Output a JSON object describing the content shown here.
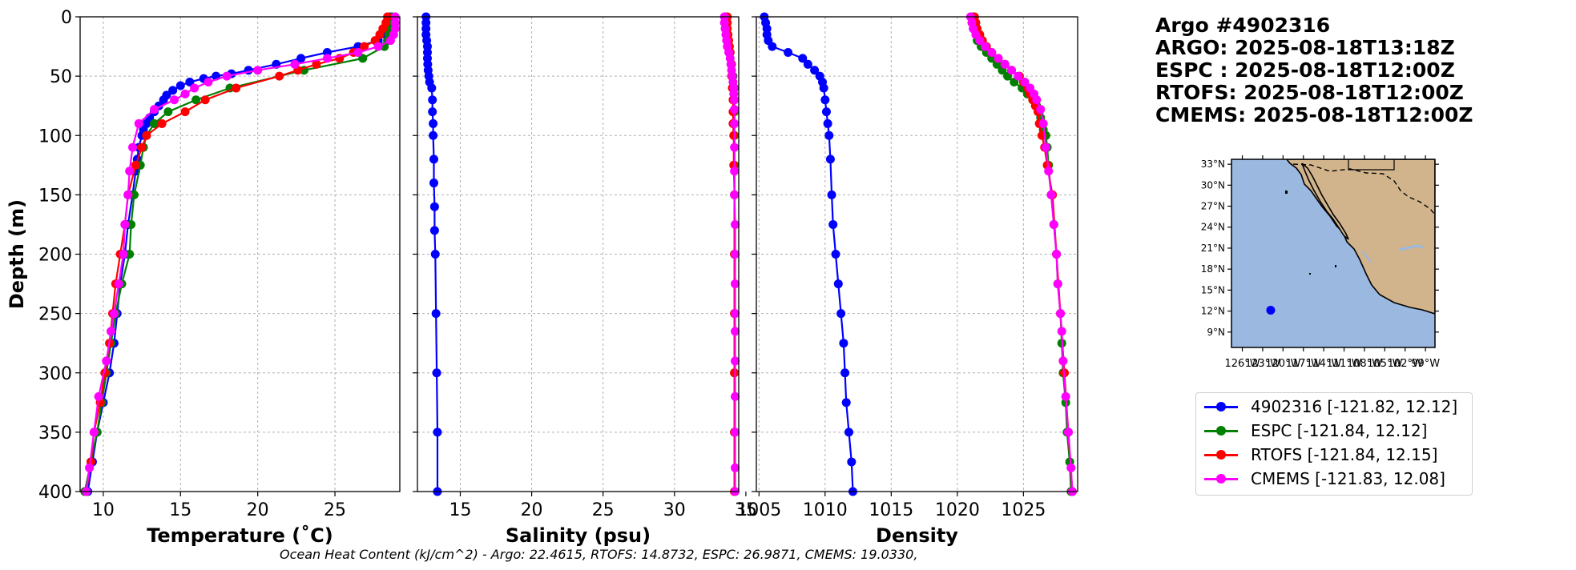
{
  "info": {
    "title": "Argo #4902316",
    "argo_time": "ARGO: 2025-08-18T13:18Z",
    "espc_time": "ESPC : 2025-08-18T12:00Z",
    "rtofs_time": "RTOFS: 2025-08-18T12:00Z",
    "cmems_time": "CMEMS: 2025-08-18T12:00Z"
  },
  "legend": [
    {
      "label": "4902316 [-121.82, 12.12]",
      "color": "#0000ff"
    },
    {
      "label": "ESPC [-121.84, 12.12]",
      "color": "#008000"
    },
    {
      "label": "RTOFS [-121.84, 12.15]",
      "color": "#ff0000"
    },
    {
      "label": "CMEMS [-121.83, 12.08]",
      "color": "#ff00ff"
    }
  ],
  "footer": "Ocean Heat Content (kJ/cm^2) - Argo: 22.4615,  RTOFS: 14.8732,  ESPC: 26.9871,  CMEMS: 19.0330,",
  "chart_data": [
    {
      "type": "line",
      "name": "temperature",
      "xlabel": "Temperature (˚C)",
      "ylabel": "Depth (m)",
      "xlim": [
        8.5,
        29.2
      ],
      "ylim": [
        400,
        0
      ],
      "xticks": [
        10,
        15,
        20,
        25
      ],
      "yticks": [
        0,
        50,
        100,
        150,
        200,
        250,
        300,
        350,
        400
      ],
      "grid": true,
      "series": [
        {
          "name": "4902316",
          "color": "#0000ff",
          "depth": [
            0,
            5,
            10,
            15,
            20,
            25,
            30,
            35,
            40,
            45,
            48,
            50,
            52,
            55,
            58,
            62,
            66,
            70,
            75,
            80,
            85,
            90,
            95,
            100,
            110,
            120,
            130,
            150,
            175,
            200,
            225,
            250,
            275,
            300,
            325,
            350,
            375,
            400
          ],
          "values": [
            28.6,
            28.6,
            28.5,
            28.3,
            27.8,
            26.5,
            24.5,
            22.8,
            21.2,
            19.4,
            18.3,
            17.3,
            16.5,
            15.6,
            15.0,
            14.5,
            14.1,
            13.9,
            13.6,
            13.3,
            13.0,
            12.8,
            12.6,
            12.5,
            12.3,
            12.2,
            12.1,
            11.9,
            11.6,
            11.4,
            11.1,
            10.9,
            10.7,
            10.4,
            10.0,
            9.6,
            9.3,
            9.0
          ]
        },
        {
          "name": "ESPC",
          "color": "#008000",
          "depth": [
            0,
            5,
            10,
            15,
            20,
            25,
            35,
            45,
            60,
            70,
            80,
            90,
            100,
            110,
            125,
            150,
            175,
            200,
            225,
            250,
            275,
            300,
            325,
            350,
            375,
            400
          ],
          "values": [
            28.7,
            28.7,
            28.6,
            28.5,
            28.4,
            28.2,
            26.8,
            23.0,
            18.2,
            16.0,
            14.2,
            13.3,
            12.8,
            12.6,
            12.4,
            12.0,
            11.8,
            11.7,
            11.2,
            10.8,
            10.5,
            10.2,
            9.9,
            9.6,
            9.2,
            8.8
          ]
        },
        {
          "name": "RTOFS",
          "color": "#ff0000",
          "depth": [
            0,
            5,
            10,
            15,
            20,
            25,
            30,
            35,
            40,
            45,
            50,
            60,
            70,
            80,
            90,
            100,
            110,
            125,
            150,
            175,
            200,
            225,
            250,
            275,
            300,
            325,
            350,
            375,
            400
          ],
          "values": [
            28.4,
            28.3,
            28.1,
            27.9,
            27.6,
            26.9,
            26.2,
            25.3,
            23.8,
            22.6,
            21.4,
            18.6,
            16.6,
            15.3,
            13.8,
            12.8,
            12.5,
            12.1,
            11.6,
            11.4,
            11.1,
            10.8,
            10.6,
            10.4,
            10.1,
            9.8,
            9.4,
            9.2,
            8.9
          ]
        },
        {
          "name": "CMEMS",
          "color": "#ff00ff",
          "depth": [
            0,
            5,
            10,
            15,
            20,
            25,
            30,
            35,
            40,
            45,
            50,
            55,
            60,
            65,
            70,
            78,
            90,
            110,
            130,
            150,
            175,
            200,
            225,
            250,
            265,
            290,
            320,
            350,
            380,
            400
          ],
          "values": [
            28.9,
            28.9,
            28.9,
            28.8,
            28.6,
            27.8,
            26.5,
            24.5,
            22.4,
            20.0,
            18.0,
            16.8,
            15.9,
            15.3,
            14.6,
            13.3,
            12.3,
            11.9,
            11.7,
            11.6,
            11.4,
            11.3,
            11.0,
            10.7,
            10.5,
            10.2,
            9.7,
            9.4,
            9.1,
            8.9
          ]
        }
      ]
    },
    {
      "type": "line",
      "name": "salinity",
      "xlabel": "Salinity (psu)",
      "xlim": [
        12.0,
        34.5
      ],
      "ylim": [
        400,
        0
      ],
      "xticks": [
        15,
        20,
        25,
        30,
        35
      ],
      "grid": true,
      "series": [
        {
          "name": "4902316",
          "color": "#0000ff",
          "depth": [
            0,
            5,
            10,
            15,
            20,
            25,
            30,
            35,
            40,
            45,
            50,
            55,
            60,
            70,
            80,
            90,
            100,
            120,
            140,
            160,
            180,
            200,
            250,
            300,
            350,
            400
          ],
          "values": [
            12.6,
            12.6,
            12.6,
            12.6,
            12.65,
            12.7,
            12.7,
            12.7,
            12.72,
            12.75,
            12.8,
            12.85,
            13.0,
            13.05,
            13.05,
            13.1,
            13.1,
            13.15,
            13.15,
            13.2,
            13.2,
            13.25,
            13.3,
            13.35,
            13.4,
            13.4
          ]
        },
        {
          "name": "ESPC",
          "color": "#008000",
          "depth": [
            0,
            10,
            20,
            25,
            30,
            40,
            50,
            60,
            70,
            80,
            100,
            125,
            150,
            200,
            250,
            300,
            350,
            400
          ],
          "values": [
            33.6,
            33.6,
            33.7,
            33.8,
            33.9,
            34.0,
            34.1,
            34.2,
            34.2,
            34.2,
            34.2,
            34.2,
            34.2,
            34.2,
            34.2,
            34.2,
            34.2,
            34.2
          ]
        },
        {
          "name": "RTOFS",
          "color": "#ff0000",
          "depth": [
            0,
            5,
            10,
            15,
            20,
            25,
            30,
            40,
            50,
            60,
            70,
            80,
            90,
            100,
            125,
            150,
            200,
            250,
            300,
            350,
            400
          ],
          "values": [
            33.7,
            33.7,
            33.7,
            33.75,
            33.8,
            33.85,
            33.9,
            34.0,
            34.0,
            34.05,
            34.1,
            34.1,
            34.1,
            34.15,
            34.15,
            34.2,
            34.2,
            34.2,
            34.2,
            34.2,
            34.2
          ]
        },
        {
          "name": "CMEMS",
          "color": "#ff00ff",
          "depth": [
            0,
            5,
            10,
            15,
            20,
            25,
            30,
            35,
            40,
            45,
            50,
            55,
            60,
            65,
            70,
            78,
            90,
            110,
            130,
            150,
            175,
            200,
            225,
            250,
            265,
            290,
            320,
            350,
            380,
            400
          ],
          "values": [
            33.5,
            33.5,
            33.55,
            33.6,
            33.65,
            33.7,
            33.8,
            33.9,
            33.95,
            34.0,
            34.05,
            34.1,
            34.15,
            34.15,
            34.2,
            34.2,
            34.2,
            34.2,
            34.2,
            34.2,
            34.25,
            34.25,
            34.25,
            34.25,
            34.25,
            34.25,
            34.25,
            34.25,
            34.25,
            34.25
          ]
        }
      ]
    },
    {
      "type": "line",
      "name": "density",
      "xlabel": "Density",
      "xlim": [
        1004.8,
        1029.1
      ],
      "ylim": [
        400,
        0
      ],
      "xticks": [
        1005,
        1010,
        1015,
        1020,
        1025
      ],
      "grid": true,
      "series": [
        {
          "name": "4902316",
          "color": "#0000ff",
          "depth": [
            0,
            5,
            10,
            15,
            20,
            25,
            30,
            35,
            40,
            45,
            50,
            55,
            60,
            70,
            80,
            90,
            100,
            120,
            150,
            175,
            200,
            225,
            250,
            275,
            300,
            325,
            350,
            375,
            400
          ],
          "values": [
            1005.4,
            1005.5,
            1005.6,
            1005.6,
            1005.7,
            1006.0,
            1007.2,
            1008.3,
            1008.7,
            1009.2,
            1009.6,
            1009.8,
            1009.9,
            1010.0,
            1010.1,
            1010.2,
            1010.3,
            1010.4,
            1010.5,
            1010.6,
            1010.8,
            1011.0,
            1011.2,
            1011.4,
            1011.5,
            1011.6,
            1011.8,
            1012.0,
            1012.1
          ]
        },
        {
          "name": "ESPC",
          "color": "#008000",
          "depth": [
            0,
            10,
            20,
            25,
            30,
            35,
            40,
            45,
            50,
            55,
            60,
            65,
            70,
            75,
            80,
            85,
            90,
            95,
            100,
            110,
            125,
            150,
            175,
            200,
            225,
            250,
            275,
            300,
            325,
            350,
            375,
            400
          ],
          "values": [
            1021.2,
            1021.3,
            1021.5,
            1021.8,
            1022.2,
            1022.6,
            1023.0,
            1023.4,
            1023.8,
            1024.3,
            1024.9,
            1025.3,
            1025.7,
            1026.0,
            1026.2,
            1026.3,
            1026.4,
            1026.5,
            1026.7,
            1026.8,
            1026.9,
            1027.1,
            1027.3,
            1027.5,
            1027.6,
            1027.8,
            1027.9,
            1028.0,
            1028.2,
            1028.3,
            1028.5,
            1028.6
          ]
        },
        {
          "name": "RTOFS",
          "color": "#ff0000",
          "depth": [
            0,
            5,
            10,
            15,
            20,
            25,
            30,
            35,
            40,
            45,
            50,
            55,
            60,
            65,
            70,
            75,
            80,
            90,
            100,
            110,
            125,
            150,
            200,
            250,
            300,
            350,
            400
          ],
          "values": [
            1021.3,
            1021.4,
            1021.5,
            1021.7,
            1021.9,
            1022.2,
            1022.6,
            1023.1,
            1023.6,
            1024.1,
            1024.7,
            1025.0,
            1025.3,
            1025.5,
            1025.7,
            1025.9,
            1026.1,
            1026.2,
            1026.4,
            1026.6,
            1026.8,
            1027.2,
            1027.5,
            1027.8,
            1028.1,
            1028.4,
            1028.7
          ]
        },
        {
          "name": "CMEMS",
          "color": "#ff00ff",
          "depth": [
            0,
            5,
            10,
            15,
            20,
            25,
            30,
            35,
            40,
            45,
            50,
            55,
            60,
            65,
            70,
            78,
            90,
            110,
            130,
            150,
            175,
            200,
            225,
            250,
            265,
            290,
            320,
            350,
            380,
            400
          ],
          "values": [
            1021.0,
            1021.1,
            1021.2,
            1021.4,
            1021.7,
            1022.1,
            1022.6,
            1023.1,
            1023.6,
            1024.1,
            1024.6,
            1025.1,
            1025.5,
            1025.8,
            1026.0,
            1026.3,
            1026.5,
            1026.7,
            1026.9,
            1027.1,
            1027.3,
            1027.5,
            1027.6,
            1027.8,
            1027.9,
            1028.0,
            1028.2,
            1028.4,
            1028.6,
            1028.7
          ]
        }
      ]
    },
    {
      "type": "map",
      "name": "location-map",
      "lat_labels": [
        "33°N",
        "30°N",
        "27°N",
        "24°N",
        "21°N",
        "18°N",
        "15°N",
        "12°N",
        "9°N"
      ],
      "lon_labels": [
        "126°W",
        "123°W",
        "120°W",
        "117°W",
        "114°W",
        "111°W",
        "108°W",
        "105°W",
        "102°W",
        "99°W"
      ],
      "lonlim": [
        -127.6,
        -97.6
      ],
      "latlim": [
        6.8,
        33.7
      ],
      "float_position": {
        "lon": -121.82,
        "lat": 12.12
      },
      "colors": {
        "ocean": "#9ab8e0",
        "land": "#d2b48c"
      }
    }
  ]
}
